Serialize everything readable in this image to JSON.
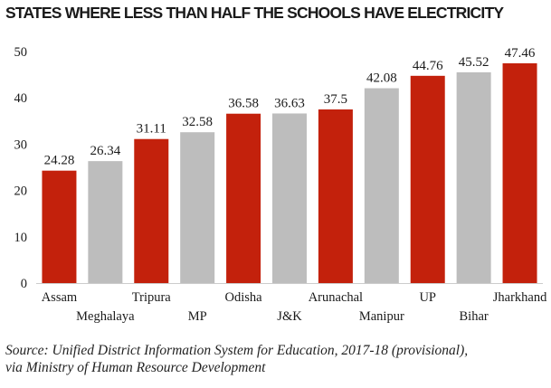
{
  "chart_data": {
    "type": "bar",
    "title": "STATES WHERE LESS THAN HALF THE SCHOOLS HAVE ELECTRICITY",
    "xlabel": "",
    "ylabel": "",
    "ylim": [
      0,
      50
    ],
    "yticks": [
      0,
      10,
      20,
      30,
      40,
      50
    ],
    "grid": false,
    "legend": null,
    "categories": [
      "Assam",
      "Meghalaya",
      "Tripura",
      "MP",
      "Odisha",
      "J&K",
      "Arunachal",
      "Manipur",
      "UP",
      "Bihar",
      "Jharkhand"
    ],
    "values": [
      24.28,
      26.34,
      31.11,
      32.58,
      36.58,
      36.63,
      37.5,
      42.08,
      44.76,
      45.52,
      47.46
    ],
    "value_labels": [
      "24.28",
      "26.34",
      "31.11",
      "32.58",
      "36.58",
      "36.63",
      "37.5",
      "42.08",
      "44.76",
      "45.52",
      "47.46"
    ],
    "bar_colors": [
      "#c3210c",
      "#bdbdbd",
      "#c3210c",
      "#bdbdbd",
      "#c3210c",
      "#bdbdbd",
      "#c3210c",
      "#bdbdbd",
      "#c3210c",
      "#bdbdbd",
      "#c3210c"
    ]
  },
  "source": {
    "line1": "Source: Unified District Information System for Education, 2017-18 (provisional),",
    "line2": "via Ministry of Human Resource Development"
  }
}
